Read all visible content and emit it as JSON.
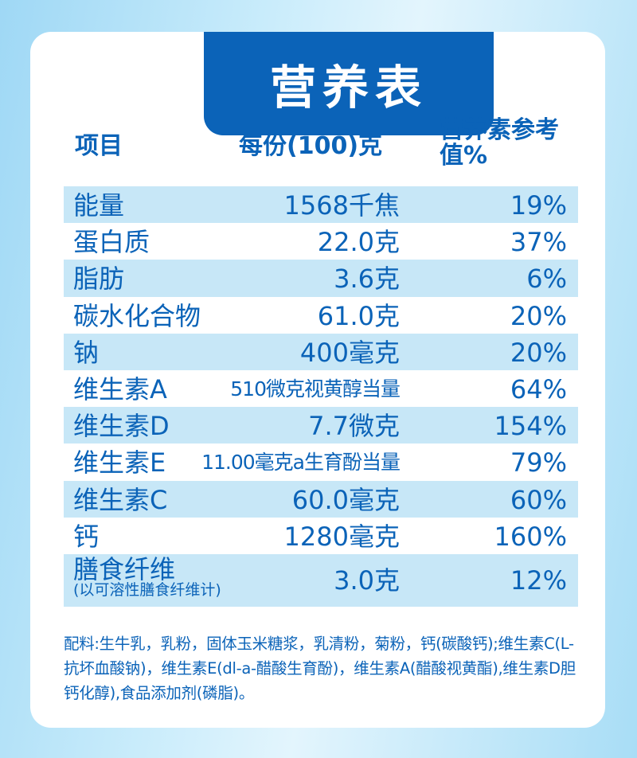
{
  "title": "营养表",
  "headers": {
    "item": "项目",
    "per_serving": "每份(100)克",
    "nrv": "营养素参考值%"
  },
  "rows": [
    {
      "name": "能量",
      "amount": "1568千焦",
      "nrv": "19%"
    },
    {
      "name": "蛋白质",
      "amount": "22.0克",
      "nrv": "37%"
    },
    {
      "name": "脂肪",
      "amount": "3.6克",
      "nrv": "6%"
    },
    {
      "name": "碳水化合物",
      "amount": "61.0克",
      "nrv": "20%"
    },
    {
      "name": "钠",
      "amount": "400毫克",
      "nrv": "20%"
    },
    {
      "name": "维生素A",
      "amount": "510微克视黄醇当量",
      "nrv": "64%"
    },
    {
      "name": "维生素D",
      "amount": "7.7微克",
      "nrv": "154%"
    },
    {
      "name": "维生素E",
      "amount": "11.00毫克a生育酚当量",
      "nrv": "79%"
    },
    {
      "name": "维生素C",
      "amount": "60.0毫克",
      "nrv": "60%"
    },
    {
      "name": "钙",
      "amount": "1280毫克",
      "nrv": "160%"
    },
    {
      "name": "膳食纤维",
      "sub": "(以可溶性膳食纤维计)",
      "amount": "3.0克",
      "nrv": "12%"
    }
  ],
  "ingredients": "配料:生牛乳，乳粉，固体玉米糖浆，乳清粉，菊粉，钙(碳酸钙);维生素C(L-抗坏血酸钠)，维生素E(dl-a-醋酸生育酚)，维生素A(醋酸视黄酯),维生素D胆钙化醇),食品添加剂(磷脂)。",
  "colors": {
    "accent": "#0b63b8",
    "row_shade": "#c7e7f7",
    "background": "#c9ecfb"
  }
}
